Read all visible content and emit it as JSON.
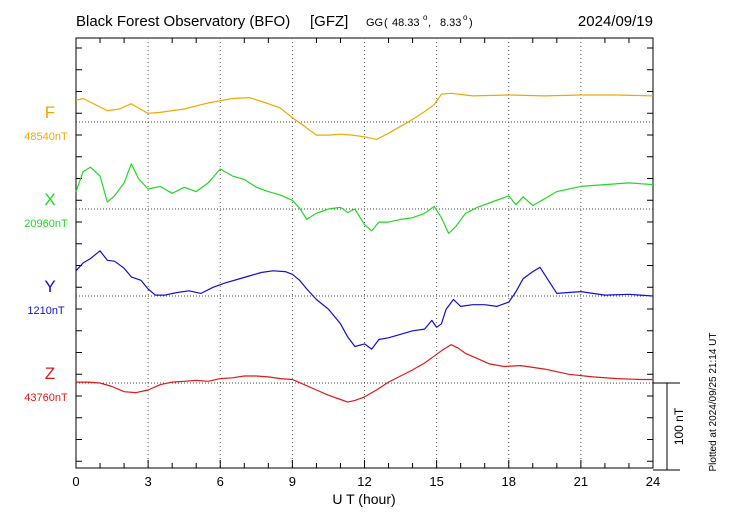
{
  "header": {
    "title": "Black Forest Observatory (BFO)",
    "source": "[GFZ]",
    "coord_system": "GG",
    "lat": "48.33",
    "lon": "8.33",
    "date": "2024/09/19"
  },
  "side_note": "Plotted at 2024/09/25 21:14 UT",
  "chart_data": {
    "type": "line",
    "xlabel": "U T (hour)",
    "xlim": [
      0,
      24
    ],
    "xticks": [
      0,
      3,
      6,
      9,
      12,
      15,
      18,
      21,
      24
    ],
    "grid": true,
    "scale_bar": {
      "label": "100 nT",
      "value": 100
    },
    "series": [
      {
        "name": "F",
        "baseline_label": "48540nT",
        "baseline": 48540,
        "color": "#f0a800",
        "x": [
          0,
          0.3,
          0.8,
          1.3,
          1.8,
          2.3,
          2.6,
          3.0,
          3.5,
          4.5,
          5.5,
          6.5,
          7.2,
          7.8,
          8.5,
          9.0,
          9.5,
          10.0,
          10.5,
          11.0,
          11.5,
          12.0,
          12.5,
          13.0,
          13.5,
          14.0,
          14.5,
          14.9,
          15.2,
          15.6,
          16.5,
          18.0,
          19.5,
          21.0,
          22.5,
          24.0
        ],
        "values": [
          48565,
          48567,
          48560,
          48553,
          48555,
          48561,
          48556,
          48550,
          48551,
          48555,
          48562,
          48567,
          48568,
          48563,
          48556,
          48545,
          48535,
          48525,
          48525,
          48526,
          48525,
          48523,
          48520,
          48527,
          48535,
          48543,
          48552,
          48560,
          48572,
          48573,
          48570,
          48571,
          48570,
          48571,
          48571,
          48570
        ]
      },
      {
        "name": "X",
        "baseline_label": "20960nT",
        "baseline": 20960,
        "color": "#22d822",
        "x": [
          0,
          0.3,
          0.6,
          1.0,
          1.3,
          1.6,
          2.0,
          2.3,
          2.6,
          3.0,
          3.5,
          4.0,
          4.5,
          5.0,
          5.5,
          6.0,
          6.5,
          7.0,
          7.5,
          8.0,
          8.5,
          9.0,
          9.3,
          9.6,
          10.0,
          10.5,
          11.0,
          11.3,
          11.6,
          12.0,
          12.3,
          12.6,
          13.0,
          13.5,
          14.0,
          14.5,
          14.9,
          15.2,
          15.5,
          15.8,
          16.2,
          16.7,
          17.3,
          18.0,
          18.3,
          18.6,
          19.0,
          19.5,
          20.0,
          21.0,
          22.0,
          23.0,
          24.0
        ],
        "values": [
          20980,
          21003,
          21008,
          20998,
          20968,
          20975,
          20990,
          21012,
          20995,
          20983,
          20986,
          20978,
          20985,
          20980,
          20990,
          21006,
          20998,
          20994,
          20985,
          20980,
          20976,
          20970,
          20961,
          20948,
          20955,
          20960,
          20962,
          20956,
          20960,
          20942,
          20935,
          20945,
          20945,
          20948,
          20950,
          20955,
          20963,
          20950,
          20932,
          20940,
          20955,
          20962,
          20968,
          20975,
          20965,
          20974,
          20964,
          20972,
          20980,
          20986,
          20988,
          20990,
          20988
        ]
      },
      {
        "name": "Y",
        "baseline_label": "1210nT",
        "baseline": 1210,
        "color": "#1010d0",
        "x": [
          0,
          0.3,
          0.6,
          1.0,
          1.3,
          1.6,
          2.0,
          2.3,
          2.7,
          3.0,
          3.3,
          3.7,
          4.2,
          4.7,
          5.2,
          5.7,
          6.2,
          6.7,
          7.2,
          7.7,
          8.2,
          8.7,
          9.0,
          9.3,
          9.6,
          10.0,
          10.5,
          11.0,
          11.3,
          11.6,
          12.0,
          12.3,
          12.6,
          13.0,
          13.5,
          14.0,
          14.5,
          14.8,
          15.0,
          15.2,
          15.4,
          15.7,
          16.0,
          16.5,
          17.0,
          17.5,
          18.0,
          18.3,
          18.6,
          19.0,
          19.3,
          19.6,
          20.0,
          21.0,
          22.0,
          23.0,
          24.0
        ],
        "values": [
          1239,
          1248,
          1253,
          1262,
          1251,
          1250,
          1242,
          1232,
          1228,
          1218,
          1211,
          1211,
          1214,
          1216,
          1213,
          1220,
          1225,
          1229,
          1233,
          1237,
          1239,
          1238,
          1235,
          1228,
          1218,
          1206,
          1195,
          1178,
          1163,
          1152,
          1155,
          1149,
          1160,
          1162,
          1166,
          1170,
          1172,
          1182,
          1174,
          1178,
          1195,
          1206,
          1198,
          1200,
          1200,
          1198,
          1203,
          1215,
          1230,
          1238,
          1243,
          1230,
          1213,
          1215,
          1211,
          1212,
          1210
        ]
      },
      {
        "name": "Z",
        "baseline_label": "43760nT",
        "baseline": 43760,
        "color": "#e01818",
        "x": [
          0,
          0.5,
          1.0,
          1.5,
          2.0,
          2.5,
          3.0,
          3.5,
          4.0,
          4.5,
          5.0,
          5.5,
          6.0,
          6.5,
          7.0,
          7.5,
          8.0,
          8.5,
          9.0,
          9.5,
          10.0,
          10.5,
          11.0,
          11.3,
          11.6,
          12.0,
          12.5,
          13.0,
          13.5,
          14.0,
          14.5,
          14.8,
          15.2,
          15.6,
          15.9,
          16.2,
          16.7,
          17.2,
          17.8,
          18.5,
          19.5,
          20.5,
          21.5,
          22.5,
          23.5,
          24.0
        ],
        "values": [
          43761,
          43761,
          43760,
          43756,
          43750,
          43749,
          43752,
          43758,
          43761,
          43762,
          43763,
          43762,
          43765,
          43766,
          43768,
          43768,
          43767,
          43765,
          43764,
          43758,
          43752,
          43746,
          43741,
          43738,
          43740,
          43744,
          43752,
          43761,
          43768,
          43775,
          43783,
          43789,
          43797,
          43804,
          43800,
          43794,
          43788,
          43782,
          43779,
          43780,
          43776,
          43770,
          43767,
          43765,
          43764,
          43764
        ]
      }
    ]
  }
}
